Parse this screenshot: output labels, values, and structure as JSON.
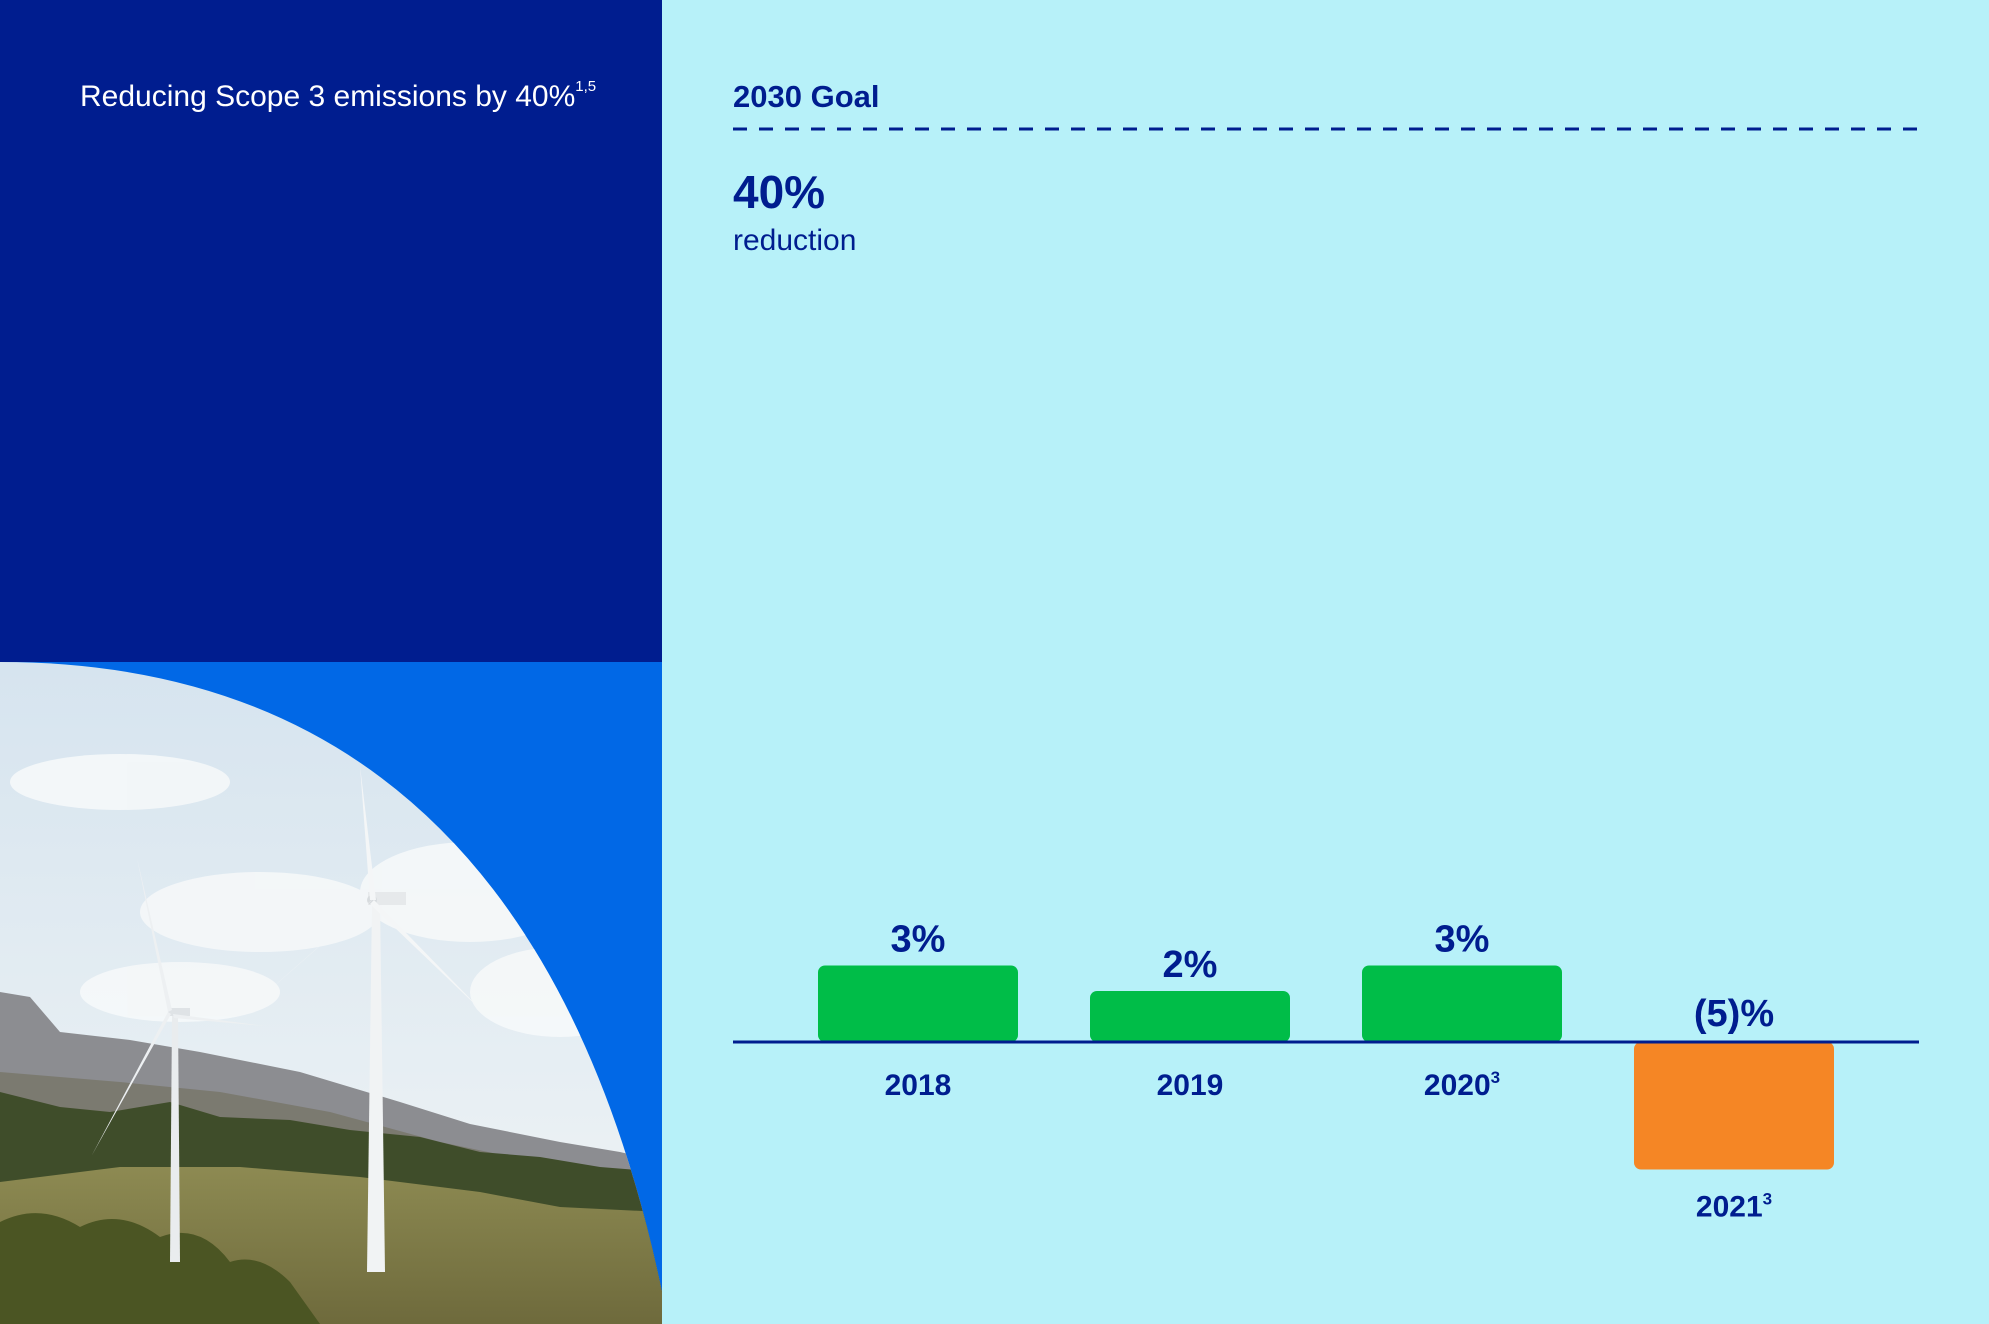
{
  "title": "Reducing Scope 3 emissions by 40%",
  "title_superscript": "1,5",
  "colors": {
    "navy": "#001d8f",
    "blue": "#0168e6",
    "light_cyan": "#b7f1f9",
    "positive_bar": "#00bd48",
    "negative_bar": "#f58625"
  },
  "chart_data": {
    "type": "bar",
    "goal": {
      "label": "2030 Goal",
      "value": "40%",
      "value_label": "reduction"
    },
    "categories": [
      "2018",
      "2019",
      "2020",
      "2021"
    ],
    "category_superscripts": [
      "",
      "",
      "3",
      "3"
    ],
    "values": [
      3,
      2,
      3,
      -5
    ],
    "data_labels": [
      "3%",
      "2%",
      "3%",
      "(5)%"
    ],
    "grid": false,
    "legend": "none"
  }
}
